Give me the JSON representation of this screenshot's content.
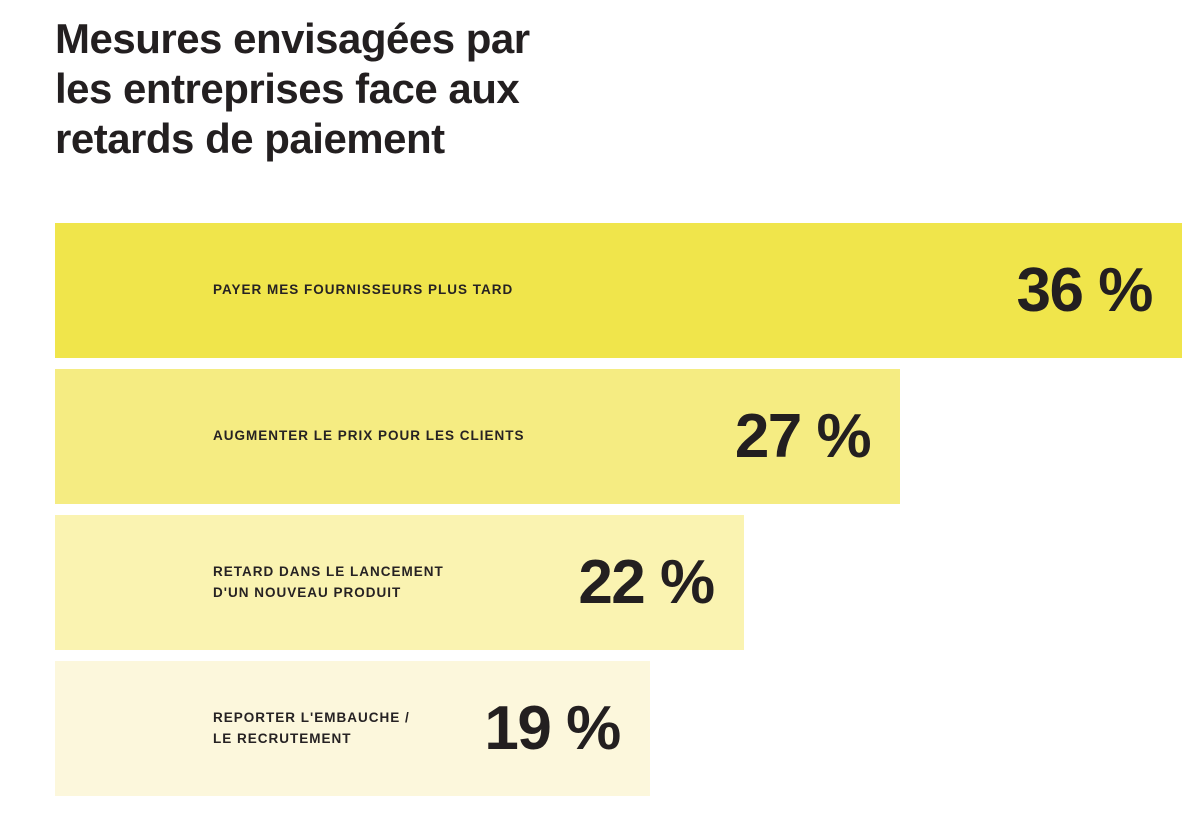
{
  "title": "Mesures envisagées par\nles entreprises face aux\nretards de paiement",
  "text_color": "#231f20",
  "background_color": "#ffffff",
  "chart_data": {
    "type": "bar",
    "orientation": "horizontal",
    "title": "Mesures envisagées par les entreprises face aux retards de paiement",
    "unit": "%",
    "xlim": [
      0,
      36.1
    ],
    "grid": false,
    "legend": false,
    "categories": [
      "PAYER MES FOURNISSEURS PLUS TARD",
      "AUGMENTER LE PRIX POUR LES CLIENTS",
      "RETARD DANS LE LANCEMENT D'UN NOUVEAU PRODUIT",
      "REPORTER L'EMBAUCHE / LE RECRUTEMENT"
    ],
    "values": [
      36,
      27,
      22,
      19
    ],
    "bars": [
      {
        "label": "PAYER MES FOURNISSEURS PLUS TARD",
        "value": 36,
        "value_label": "36 %",
        "color": "#f0e54b"
      },
      {
        "label": "AUGMENTER LE PRIX POUR LES CLIENTS",
        "value": 27,
        "value_label": "27 %",
        "color": "#f5ec82"
      },
      {
        "label": "RETARD DANS LE LANCEMENT\nD'UN NOUVEAU PRODUIT",
        "value": 22,
        "value_label": "22 %",
        "color": "#faf3b1"
      },
      {
        "label": "REPORTER L'EMBAUCHE /\nLE RECRUTEMENT",
        "value": 19,
        "value_label": "19 %",
        "color": "#fcf7dc"
      }
    ]
  }
}
